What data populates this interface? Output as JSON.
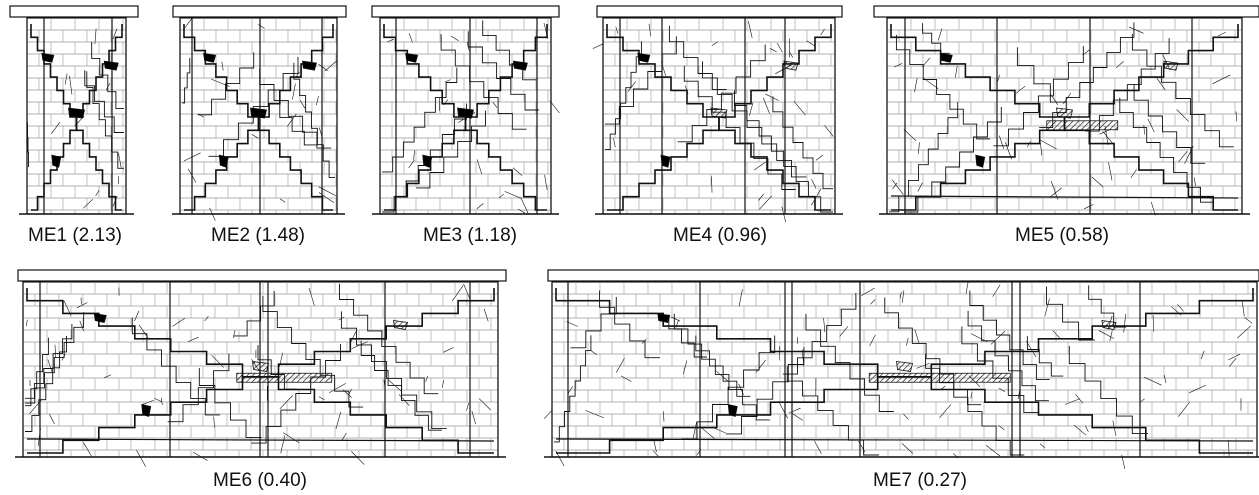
{
  "colors": {
    "ink": "#111111",
    "brick": "#9a9a9a",
    "fill": "#000000"
  },
  "panels": [
    {
      "id": "ME1",
      "label": "ME1 (2.13)"
    },
    {
      "id": "ME2",
      "label": "ME2 (1.48)"
    },
    {
      "id": "ME3",
      "label": "ME3 (1.18)"
    },
    {
      "id": "ME4",
      "label": "ME4 (0.96)"
    },
    {
      "id": "ME5",
      "label": "ME5 (0.58)"
    },
    {
      "id": "ME6",
      "label": "ME6 (0.40)"
    },
    {
      "id": "ME7",
      "label": "ME7 (0.27)"
    }
  ]
}
